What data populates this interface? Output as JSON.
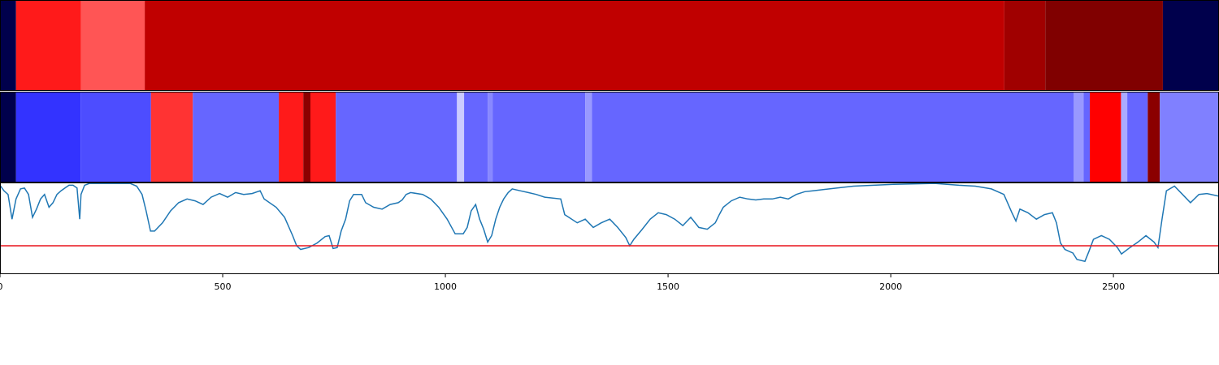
{
  "chart_data": {
    "type": "line",
    "xlim": [
      0,
      2737
    ],
    "xticks": [
      0,
      500,
      1000,
      1500,
      2000,
      2500
    ],
    "ylim": [
      0,
      1
    ],
    "bands": [
      {
        "edges": [
          0,
          36,
          182,
          325,
          2255,
          2347,
          2611,
          2737
        ],
        "colors": [
          "#00004c",
          "#ff1a1a",
          "#ff5555",
          "#c00000",
          "#a00000",
          "#800000",
          "#00004c"
        ]
      },
      {
        "edges": [
          0,
          36,
          181,
          339,
          433,
          626,
          681,
          697,
          754,
          1026,
          1042,
          1095,
          1106,
          1314,
          1329,
          2411,
          2433,
          2447,
          2517,
          2531,
          2577,
          2604,
          2737
        ],
        "colors": [
          "#00004c",
          "#3333ff",
          "#4d4dff",
          "#ff3333",
          "#6666ff",
          "#ff1a1a",
          "#8b0000",
          "#ff1a1a",
          "#6666ff",
          "#ccccff",
          "#6666ff",
          "#8888ff",
          "#6666ff",
          "#9999ff",
          "#6666ff",
          "#9999ff",
          "#6666ff",
          "#ff0000",
          "#aaaaff",
          "#6666ff",
          "#8b0000",
          "#8080ff"
        ]
      }
    ],
    "threshold": 0.31,
    "threshold_color": "#e8141c",
    "x": [
      0,
      9,
      18,
      27,
      36,
      46,
      55,
      64,
      73,
      82,
      91,
      100,
      110,
      119,
      128,
      137,
      146,
      155,
      164,
      173,
      179,
      182,
      190,
      201,
      292,
      307,
      319,
      328,
      338,
      347,
      365,
      383,
      401,
      420,
      438,
      456,
      474,
      493,
      511,
      529,
      547,
      566,
      584,
      593,
      620,
      639,
      657,
      666,
      675,
      693,
      712,
      730,
      739,
      748,
      757,
      766,
      776,
      785,
      794,
      812,
      821,
      839,
      858,
      876,
      894,
      903,
      912,
      922,
      949,
      967,
      985,
      1004,
      1022,
      1040,
      1049,
      1058,
      1068,
      1077,
      1086,
      1095,
      1104,
      1113,
      1122,
      1131,
      1141,
      1150,
      1168,
      1186,
      1204,
      1223,
      1259,
      1268,
      1277,
      1296,
      1314,
      1332,
      1350,
      1369,
      1387,
      1405,
      1414,
      1423,
      1442,
      1460,
      1478,
      1496,
      1515,
      1533,
      1551,
      1569,
      1588,
      1606,
      1615,
      1624,
      1642,
      1661,
      1679,
      1697,
      1715,
      1734,
      1752,
      1770,
      1788,
      1807,
      1825,
      1916,
      2007,
      2099,
      2153,
      2190,
      2226,
      2254,
      2272,
      2281,
      2290,
      2308,
      2327,
      2345,
      2363,
      2372,
      2381,
      2391,
      2409,
      2418,
      2436,
      2445,
      2455,
      2473,
      2491,
      2509,
      2518,
      2537,
      2555,
      2573,
      2591,
      2600,
      2609,
      2619,
      2637,
      2655,
      2673,
      2692,
      2710,
      2737
    ],
    "series": [
      {
        "color": "#1f77b4",
        "values": [
          0.97,
          0.91,
          0.87,
          0.6,
          0.82,
          0.93,
          0.94,
          0.87,
          0.62,
          0.71,
          0.82,
          0.87,
          0.73,
          0.78,
          0.87,
          0.91,
          0.94,
          0.97,
          0.97,
          0.94,
          0.6,
          0.87,
          0.97,
          0.99,
          0.99,
          0.96,
          0.87,
          0.69,
          0.47,
          0.47,
          0.56,
          0.69,
          0.78,
          0.82,
          0.8,
          0.76,
          0.84,
          0.88,
          0.84,
          0.89,
          0.87,
          0.88,
          0.91,
          0.82,
          0.73,
          0.62,
          0.42,
          0.31,
          0.27,
          0.29,
          0.34,
          0.41,
          0.42,
          0.28,
          0.29,
          0.47,
          0.6,
          0.8,
          0.87,
          0.87,
          0.78,
          0.73,
          0.71,
          0.76,
          0.78,
          0.81,
          0.87,
          0.89,
          0.87,
          0.82,
          0.73,
          0.6,
          0.44,
          0.44,
          0.51,
          0.69,
          0.76,
          0.6,
          0.49,
          0.35,
          0.42,
          0.6,
          0.73,
          0.82,
          0.89,
          0.93,
          0.91,
          0.89,
          0.87,
          0.84,
          0.82,
          0.65,
          0.62,
          0.56,
          0.6,
          0.51,
          0.56,
          0.6,
          0.51,
          0.4,
          0.31,
          0.38,
          0.49,
          0.6,
          0.67,
          0.65,
          0.6,
          0.53,
          0.62,
          0.51,
          0.49,
          0.56,
          0.65,
          0.73,
          0.8,
          0.84,
          0.82,
          0.81,
          0.82,
          0.82,
          0.84,
          0.82,
          0.87,
          0.9,
          0.91,
          0.96,
          0.98,
          0.99,
          0.97,
          0.96,
          0.93,
          0.87,
          0.67,
          0.58,
          0.71,
          0.67,
          0.6,
          0.65,
          0.67,
          0.56,
          0.34,
          0.27,
          0.23,
          0.16,
          0.14,
          0.25,
          0.38,
          0.42,
          0.38,
          0.29,
          0.22,
          0.29,
          0.35,
          0.42,
          0.35,
          0.29,
          0.6,
          0.91,
          0.96,
          0.87,
          0.78,
          0.87,
          0.88,
          0.85
        ]
      }
    ]
  }
}
